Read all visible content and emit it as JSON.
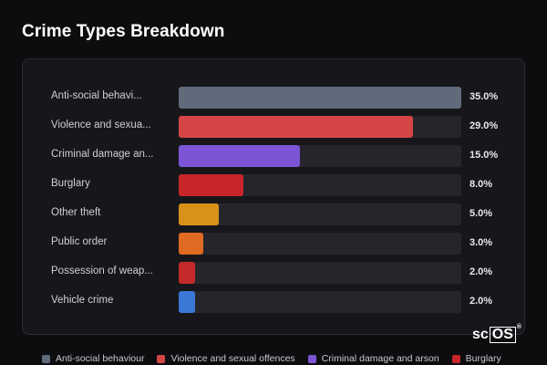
{
  "chart_data": {
    "type": "bar",
    "orientation": "horizontal",
    "title": "Crime Types Breakdown",
    "categories": [
      "Anti-social behavi...",
      "Violence and sexua...",
      "Criminal damage an...",
      "Burglary",
      "Other theft",
      "Public order",
      "Possession of weap...",
      "Vehicle crime"
    ],
    "values": [
      35.0,
      29.0,
      15.0,
      8.0,
      5.0,
      3.0,
      2.0,
      2.0
    ],
    "value_labels": [
      "35.0%",
      "29.0%",
      "15.0%",
      "8.0%",
      "5.0%",
      "3.0%",
      "2.0%",
      "2.0%"
    ],
    "colors": [
      "#5f6a7b",
      "#d64545",
      "#7b55d6",
      "#c8262a",
      "#d8921a",
      "#df6a22",
      "#c42a2a",
      "#3c78d8"
    ],
    "xlim": [
      0,
      35
    ],
    "legend_position": "bottom",
    "legend": [
      {
        "label": "Anti-social behaviour",
        "color": "#5f6a7b"
      },
      {
        "label": "Violence and sexual offences",
        "color": "#d64545"
      },
      {
        "label": "Criminal damage and arson",
        "color": "#7b55d6"
      },
      {
        "label": "Burglary",
        "color": "#c8262a"
      }
    ]
  },
  "watermark": {
    "prefix": "sc",
    "boxed": "OS",
    "mark": "®"
  }
}
